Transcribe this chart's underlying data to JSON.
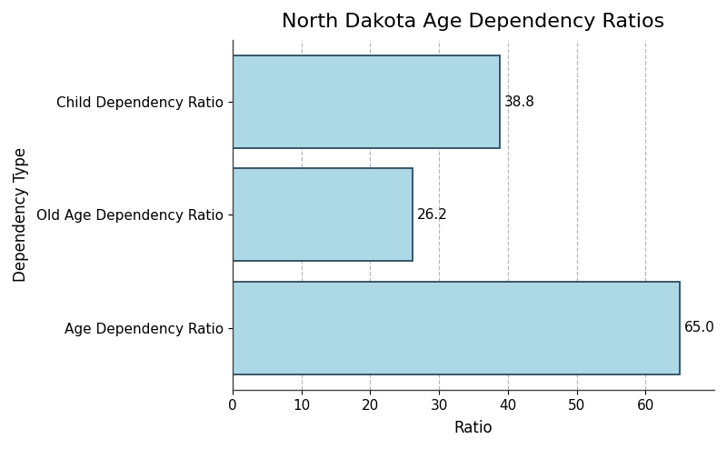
{
  "title": "North Dakota Age Dependency Ratios",
  "categories": [
    "Age Dependency Ratio",
    "Old Age Dependency Ratio",
    "Child Dependency Ratio"
  ],
  "values": [
    65.0,
    26.2,
    38.8
  ],
  "bar_color": "#add8e6",
  "bar_edgecolor": "#2d4a5e",
  "xlabel": "Ratio",
  "ylabel": "Dependency Type",
  "xlim": [
    0,
    70
  ],
  "xticks": [
    0,
    10,
    20,
    30,
    40,
    50,
    60
  ],
  "title_fontsize": 16,
  "label_fontsize": 12,
  "tick_fontsize": 11,
  "annotation_fontsize": 11,
  "bar_height": 0.82,
  "grid_color": "#b0b0b8",
  "grid_linestyle": "--",
  "background_color": "#ffffff"
}
